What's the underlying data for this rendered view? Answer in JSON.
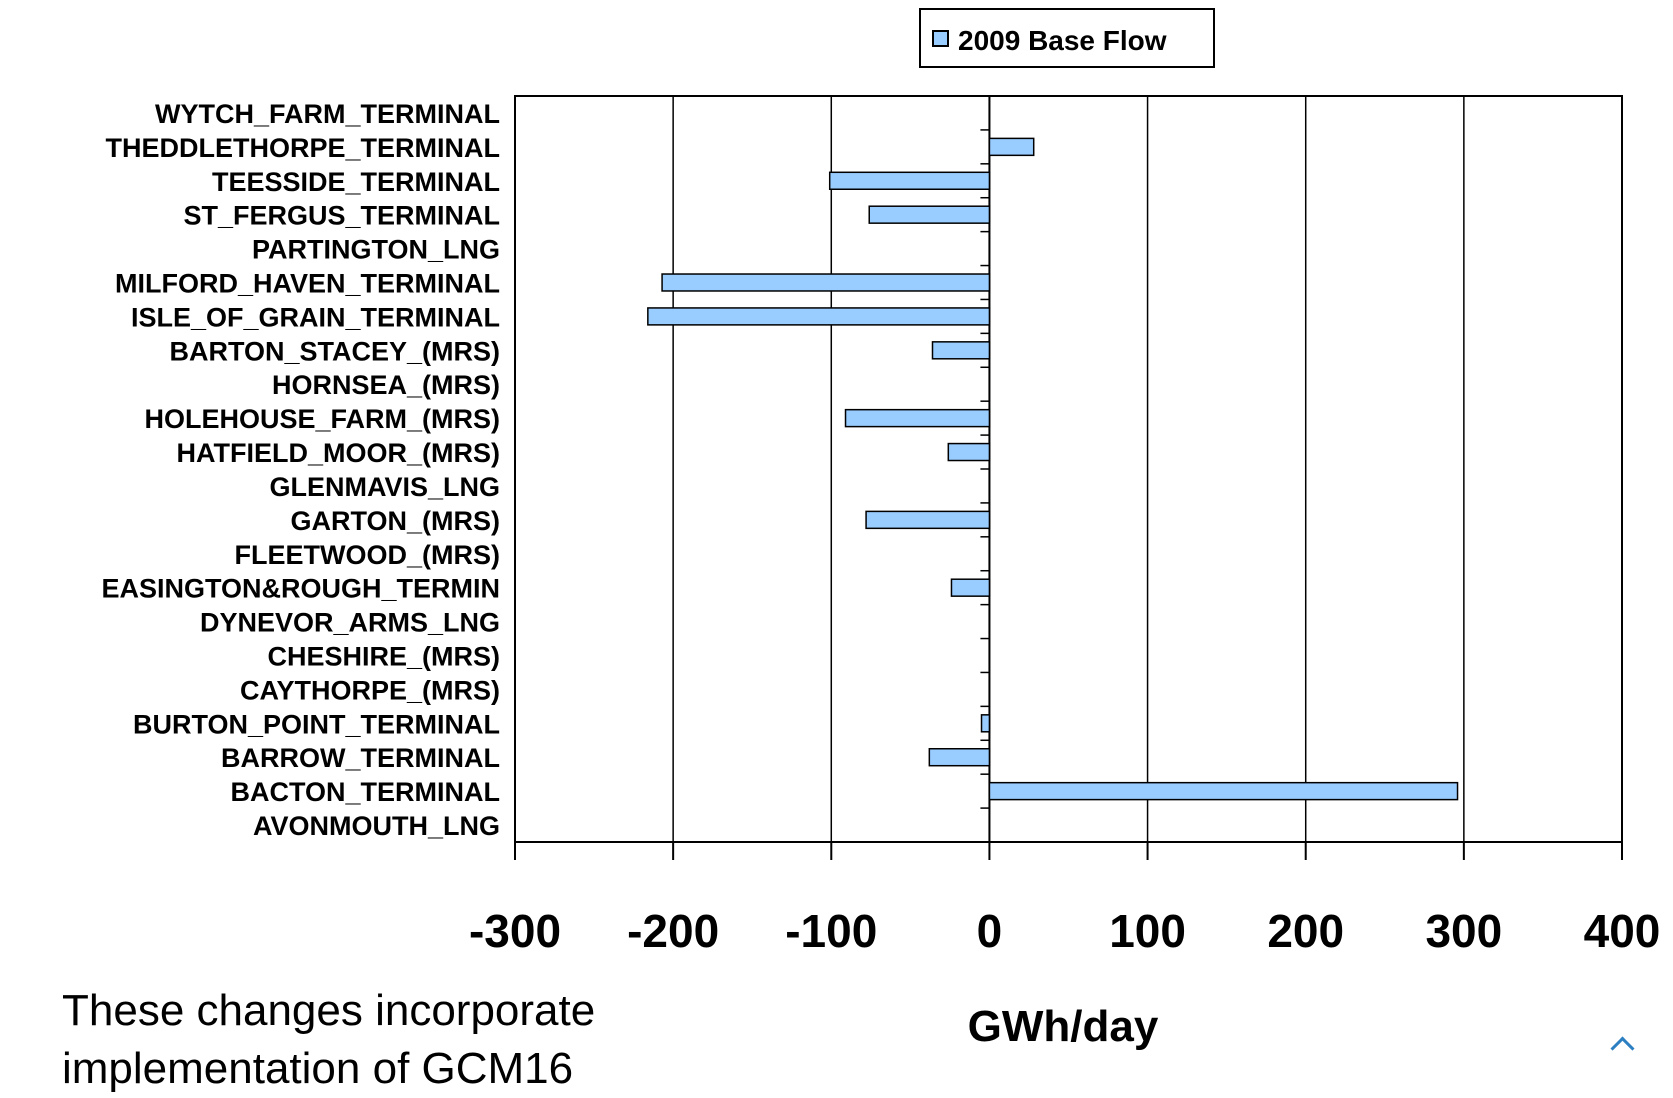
{
  "chart_data": {
    "type": "bar",
    "orientation": "horizontal",
    "categories": [
      "WYTCH_FARM_TERMINAL",
      "THEDDLETHORPE_TERMINAL",
      "TEESSIDE_TERMINAL",
      "ST_FERGUS_TERMINAL",
      "PARTINGTON_LNG",
      "MILFORD_HAVEN_TERMINAL",
      "ISLE_OF_GRAIN_TERMINAL",
      "BARTON_STACEY_(MRS)",
      "HORNSEA_(MRS)",
      "HOLEHOUSE_FARM_(MRS)",
      "HATFIELD_MOOR_(MRS)",
      "GLENMAVIS_LNG",
      "GARTON_(MRS)",
      "FLEETWOOD_(MRS)",
      "EASINGTON&ROUGH_TERMIN",
      "DYNEVOR_ARMS_LNG",
      "CHESHIRE_(MRS)",
      "CAYTHORPE_(MRS)",
      "BURTON_POINT_TERMINAL",
      "BARROW_TERMINAL",
      "BACTON_TERMINAL",
      "AVONMOUTH_LNG"
    ],
    "series": [
      {
        "name": "2009 Base Flow",
        "color": "#99ccff",
        "values": [
          0,
          28,
          -101,
          -76,
          0,
          -207,
          -216,
          -36,
          0,
          -91,
          -26,
          0,
          -78,
          0,
          -24,
          0,
          0,
          0,
          -5,
          -38,
          296,
          0
        ]
      }
    ],
    "xlabel": "GWh/day",
    "xlim": [
      -300,
      400
    ],
    "xticks": [
      "-300",
      "-200",
      "-100",
      "0",
      "100",
      "200",
      "300",
      "400"
    ],
    "grid": "vertical",
    "legend": "top-center"
  },
  "note": {
    "line1": "These changes incorporate",
    "line2": "implementation of GCM16"
  }
}
